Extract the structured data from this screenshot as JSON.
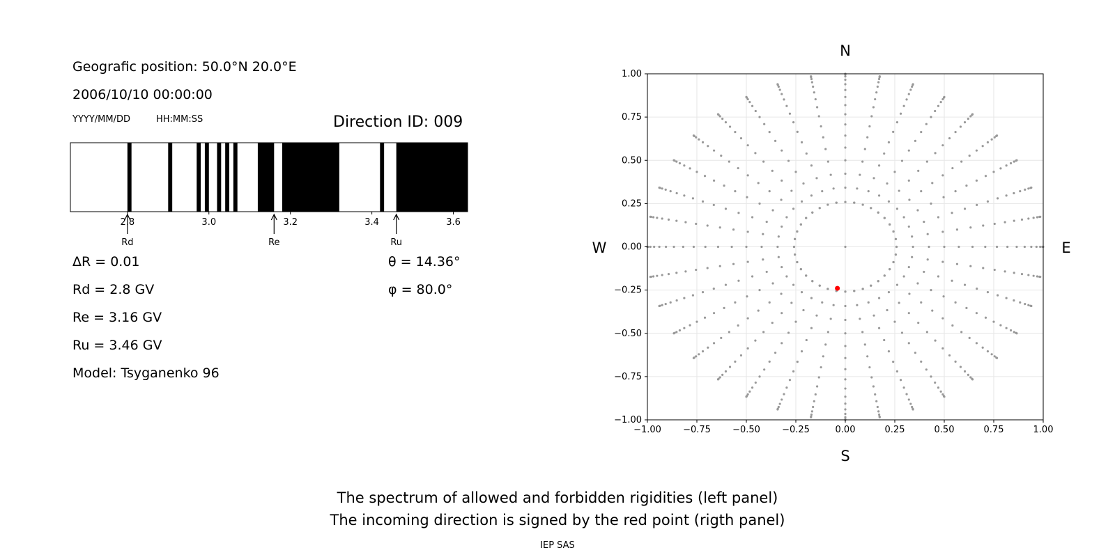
{
  "info": {
    "position": "Geografic position: 50.0°N 20.0°E",
    "datetime": "2006/10/10 00:00:00",
    "date_format": "YYYY/MM/DD",
    "time_format": "HH:MM:SS",
    "direction": "Direction ID: 009",
    "delta_r": "ΔR = 0.01",
    "rd": "Rd = 2.8 GV",
    "re": "Re = 3.16 GV",
    "ru": "Ru = 3.46 GV",
    "model": "Model: Tsyganenko 96",
    "theta": "θ = 14.36°",
    "phi": "φ = 80.0°"
  },
  "caption": {
    "line1": "The spectrum of allowed and forbidden rigidities (left panel)",
    "line2": "The incoming direction is signed by the red point (rigth panel)",
    "credit": "IEP SAS"
  },
  "chart_data": [
    {
      "type": "bar",
      "name": "rigidity spectrum",
      "xlim": [
        2.66,
        3.635
      ],
      "ticks": [
        "2.8",
        "3.0",
        "3.2",
        "3.4",
        "3.6"
      ],
      "tick_values": [
        2.8,
        3.0,
        3.2,
        3.4,
        3.6
      ],
      "forbidden_bands": [
        [
          2.8,
          2.81
        ],
        [
          2.9,
          2.91
        ],
        [
          2.97,
          2.98
        ],
        [
          2.99,
          3.0
        ],
        [
          3.02,
          3.03
        ],
        [
          3.04,
          3.05
        ],
        [
          3.06,
          3.07
        ],
        [
          3.12,
          3.16
        ],
        [
          3.18,
          3.32
        ],
        [
          3.42,
          3.43
        ],
        [
          3.46,
          3.635
        ]
      ],
      "markers": [
        {
          "label": "Rd",
          "value": 2.8
        },
        {
          "label": "Re",
          "value": 3.16
        },
        {
          "label": "Ru",
          "value": 3.46
        }
      ],
      "colors": {
        "forbidden": "#000000",
        "allowed": "#ffffff"
      }
    },
    {
      "type": "scatter",
      "name": "incoming direction",
      "xlim": [
        -1.0,
        1.0
      ],
      "ylim": [
        -1.0,
        1.0
      ],
      "xticks": [
        "−1.00",
        "−0.75",
        "−0.50",
        "−0.25",
        "0.00",
        "0.25",
        "0.50",
        "0.75",
        "1.00"
      ],
      "yticks": [
        "1.00",
        "0.75",
        "0.50",
        "0.25",
        "0.00",
        "−0.25",
        "−0.50",
        "−0.75",
        "−1.00"
      ],
      "compass": {
        "north": "N",
        "south": "S",
        "west": "W",
        "east": "E"
      },
      "grid": true,
      "grid_rays": 36,
      "grid_points_per_ray": 91,
      "grid_step_deg": 5,
      "inner_ring_deg": 15,
      "selected_point": {
        "x": -0.04,
        "y": -0.24
      },
      "colors": {
        "grid_points": "#999999",
        "selected": "#ff0000"
      }
    }
  ]
}
